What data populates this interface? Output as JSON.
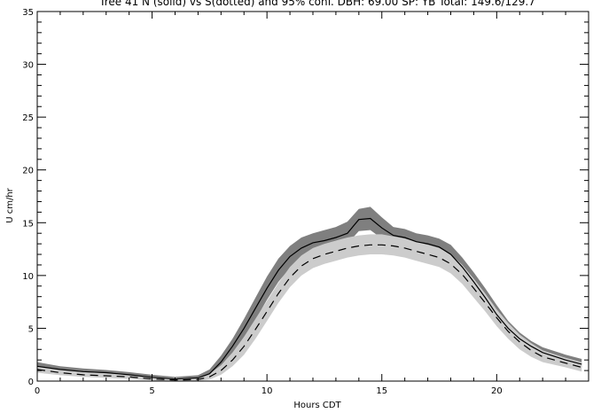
{
  "chart_data": {
    "type": "line",
    "title": "Tree 41 N (solid) vs S(dotted) and 95% conf. DBH: 69.00 SP: YB Total: 149.6/129.7",
    "xlabel": "Hours CDT",
    "ylabel": "U cm/hr",
    "xlim": [
      0,
      24
    ],
    "ylim": [
      0,
      35
    ],
    "x_ticks": [
      0,
      5,
      10,
      15,
      20
    ],
    "y_ticks": [
      0,
      5,
      10,
      15,
      20,
      25,
      30,
      35
    ],
    "grid": false,
    "series": [
      {
        "style": "solid",
        "color": "#000000",
        "band_color": "#7f7f7f",
        "x": [
          0,
          1,
          2,
          3,
          4,
          5,
          6,
          7,
          7.5,
          8,
          8.5,
          9,
          9.5,
          10,
          10.5,
          11,
          11.5,
          12,
          12.5,
          13,
          13.5,
          14,
          14.5,
          15,
          15.5,
          16,
          16.5,
          17,
          17.5,
          18,
          18.5,
          19,
          19.5,
          20,
          20.5,
          21,
          21.5,
          22,
          23,
          23.7
        ],
        "y": [
          1.4,
          1.1,
          0.9,
          0.8,
          0.6,
          0.35,
          0.2,
          0.3,
          0.7,
          1.8,
          3.3,
          5.0,
          6.9,
          8.8,
          10.5,
          11.8,
          12.6,
          13.1,
          13.3,
          13.6,
          14.0,
          15.3,
          15.4,
          14.5,
          13.8,
          13.6,
          13.2,
          13.0,
          12.7,
          12.0,
          10.8,
          9.4,
          7.9,
          6.3,
          5.0,
          4.0,
          3.3,
          2.7,
          2.0,
          1.6
        ],
        "lower": [
          1.1,
          0.85,
          0.65,
          0.6,
          0.4,
          0.15,
          0.05,
          0.1,
          0.4,
          1.2,
          2.5,
          4.0,
          5.8,
          7.7,
          9.4,
          10.7,
          11.5,
          12.1,
          12.4,
          12.7,
          13.0,
          14.2,
          14.3,
          13.5,
          12.9,
          12.7,
          12.3,
          12.1,
          11.8,
          11.1,
          9.9,
          8.6,
          7.2,
          5.7,
          4.4,
          3.5,
          2.8,
          2.3,
          1.7,
          1.3
        ],
        "upper": [
          1.8,
          1.4,
          1.2,
          1.05,
          0.85,
          0.6,
          0.4,
          0.55,
          1.1,
          2.4,
          4.0,
          5.9,
          7.9,
          9.9,
          11.6,
          12.8,
          13.6,
          14.0,
          14.3,
          14.6,
          15.1,
          16.3,
          16.5,
          15.5,
          14.6,
          14.4,
          14.0,
          13.8,
          13.5,
          12.9,
          11.7,
          10.3,
          8.8,
          7.2,
          5.7,
          4.6,
          3.8,
          3.2,
          2.5,
          2.1
        ]
      },
      {
        "style": "dashed",
        "color": "#000000",
        "band_color": "#cccccc",
        "x": [
          0,
          1,
          2,
          3,
          4,
          5,
          6,
          7,
          7.5,
          8,
          8.5,
          9,
          9.5,
          10,
          10.5,
          11,
          11.5,
          12,
          12.5,
          13,
          13.5,
          14,
          14.5,
          15,
          15.5,
          16,
          16.5,
          17,
          17.5,
          18,
          18.5,
          19,
          19.5,
          20,
          20.5,
          21,
          21.5,
          22,
          23,
          23.7
        ],
        "y": [
          1.1,
          0.8,
          0.6,
          0.5,
          0.4,
          0.2,
          0.1,
          0.15,
          0.4,
          1.0,
          2.0,
          3.3,
          4.9,
          6.6,
          8.3,
          9.8,
          10.9,
          11.6,
          12.0,
          12.3,
          12.6,
          12.8,
          12.9,
          12.9,
          12.8,
          12.6,
          12.3,
          12.0,
          11.7,
          11.1,
          10.1,
          8.8,
          7.4,
          6.0,
          4.7,
          3.7,
          2.9,
          2.3,
          1.7,
          1.3
        ],
        "lower": [
          0.8,
          0.55,
          0.4,
          0.3,
          0.2,
          0.05,
          0.0,
          0.0,
          0.15,
          0.6,
          1.4,
          2.5,
          4.0,
          5.7,
          7.4,
          8.9,
          10.0,
          10.7,
          11.1,
          11.4,
          11.7,
          11.9,
          12.0,
          12.0,
          11.9,
          11.7,
          11.4,
          11.1,
          10.8,
          10.2,
          9.2,
          7.9,
          6.6,
          5.2,
          4.0,
          3.0,
          2.3,
          1.8,
          1.3,
          0.9
        ],
        "upper": [
          1.4,
          1.1,
          0.85,
          0.75,
          0.6,
          0.4,
          0.3,
          0.35,
          0.7,
          1.5,
          2.7,
          4.2,
          5.9,
          7.6,
          9.3,
          10.8,
          11.9,
          12.6,
          13.0,
          13.3,
          13.6,
          13.8,
          13.9,
          13.9,
          13.7,
          13.5,
          13.2,
          12.9,
          12.6,
          12.0,
          11.0,
          9.7,
          8.3,
          6.8,
          5.5,
          4.4,
          3.6,
          2.9,
          2.2,
          1.8
        ]
      }
    ]
  }
}
